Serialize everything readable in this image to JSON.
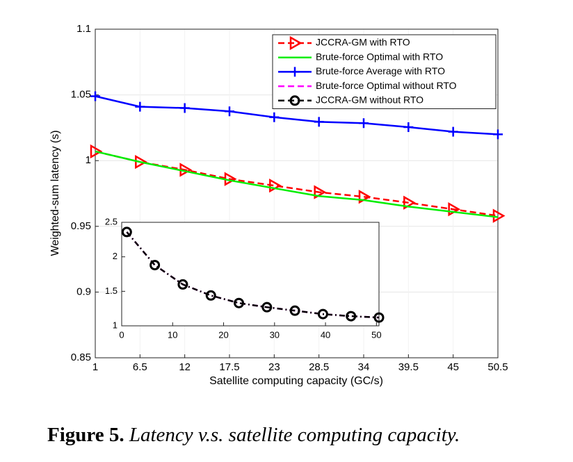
{
  "chart_data": [
    {
      "type": "line",
      "xlabel": "Satellite computing capacity (GC/s)",
      "ylabel": "Weighted-sum latency (s)",
      "x": [
        1,
        6.5,
        12,
        17.5,
        23,
        28.5,
        34,
        39.5,
        45,
        50.5
      ],
      "xlim": [
        1,
        50.5
      ],
      "xticks": [
        1,
        6.5,
        12,
        17.5,
        23,
        28.5,
        34,
        39.5,
        45,
        50.5
      ],
      "ylim": [
        0.85,
        1.1
      ],
      "yticks": [
        0.85,
        0.9,
        0.95,
        1,
        1.05,
        1.1
      ],
      "grid": true,
      "legend": "upper right",
      "series": [
        {
          "name": "JCCRA-GM with RTO",
          "color": "#ff0000",
          "dash": true,
          "marker": "triangle",
          "values": [
            1.007,
            0.999,
            0.993,
            0.986,
            0.981,
            0.976,
            0.9725,
            0.968,
            0.963,
            0.958
          ]
        },
        {
          "name": "Brute-force Optimal with RTO",
          "color": "#00ee00",
          "dash": false,
          "marker": "none",
          "values": [
            1.007,
            0.999,
            0.992,
            0.985,
            0.979,
            0.973,
            0.97,
            0.965,
            0.961,
            0.957
          ]
        },
        {
          "name": "Brute-force Average with RTO",
          "color": "#0000ff",
          "dash": false,
          "marker": "plus",
          "values": [
            1.049,
            1.041,
            1.04,
            1.0375,
            1.033,
            1.0295,
            1.0285,
            1.0255,
            1.022,
            1.02
          ]
        }
      ]
    },
    {
      "type": "line",
      "x": [
        1,
        6.5,
        12,
        17.5,
        23,
        28.5,
        34,
        39.5,
        45,
        50.5
      ],
      "xlim": [
        0,
        50.5
      ],
      "xticks": [
        0,
        10,
        20,
        30,
        40,
        50
      ],
      "ylim": [
        1,
        2.5
      ],
      "yticks": [
        1,
        1.5,
        2,
        2.5
      ],
      "grid": false,
      "series": [
        {
          "name": "Brute-force Optimal without RTO",
          "color": "#ff00ff",
          "dash": true,
          "marker": "none",
          "values": [
            2.36,
            1.88,
            1.6,
            1.44,
            1.33,
            1.27,
            1.22,
            1.17,
            1.14,
            1.12
          ]
        },
        {
          "name": "JCCRA-GM without RTO",
          "color": "#000000",
          "dash": true,
          "marker": "circle",
          "values": [
            2.36,
            1.88,
            1.6,
            1.44,
            1.33,
            1.27,
            1.22,
            1.17,
            1.14,
            1.12
          ]
        }
      ]
    }
  ],
  "caption": {
    "label": "Figure 5.",
    "text": "Latency v.s. satellite computing capacity."
  }
}
